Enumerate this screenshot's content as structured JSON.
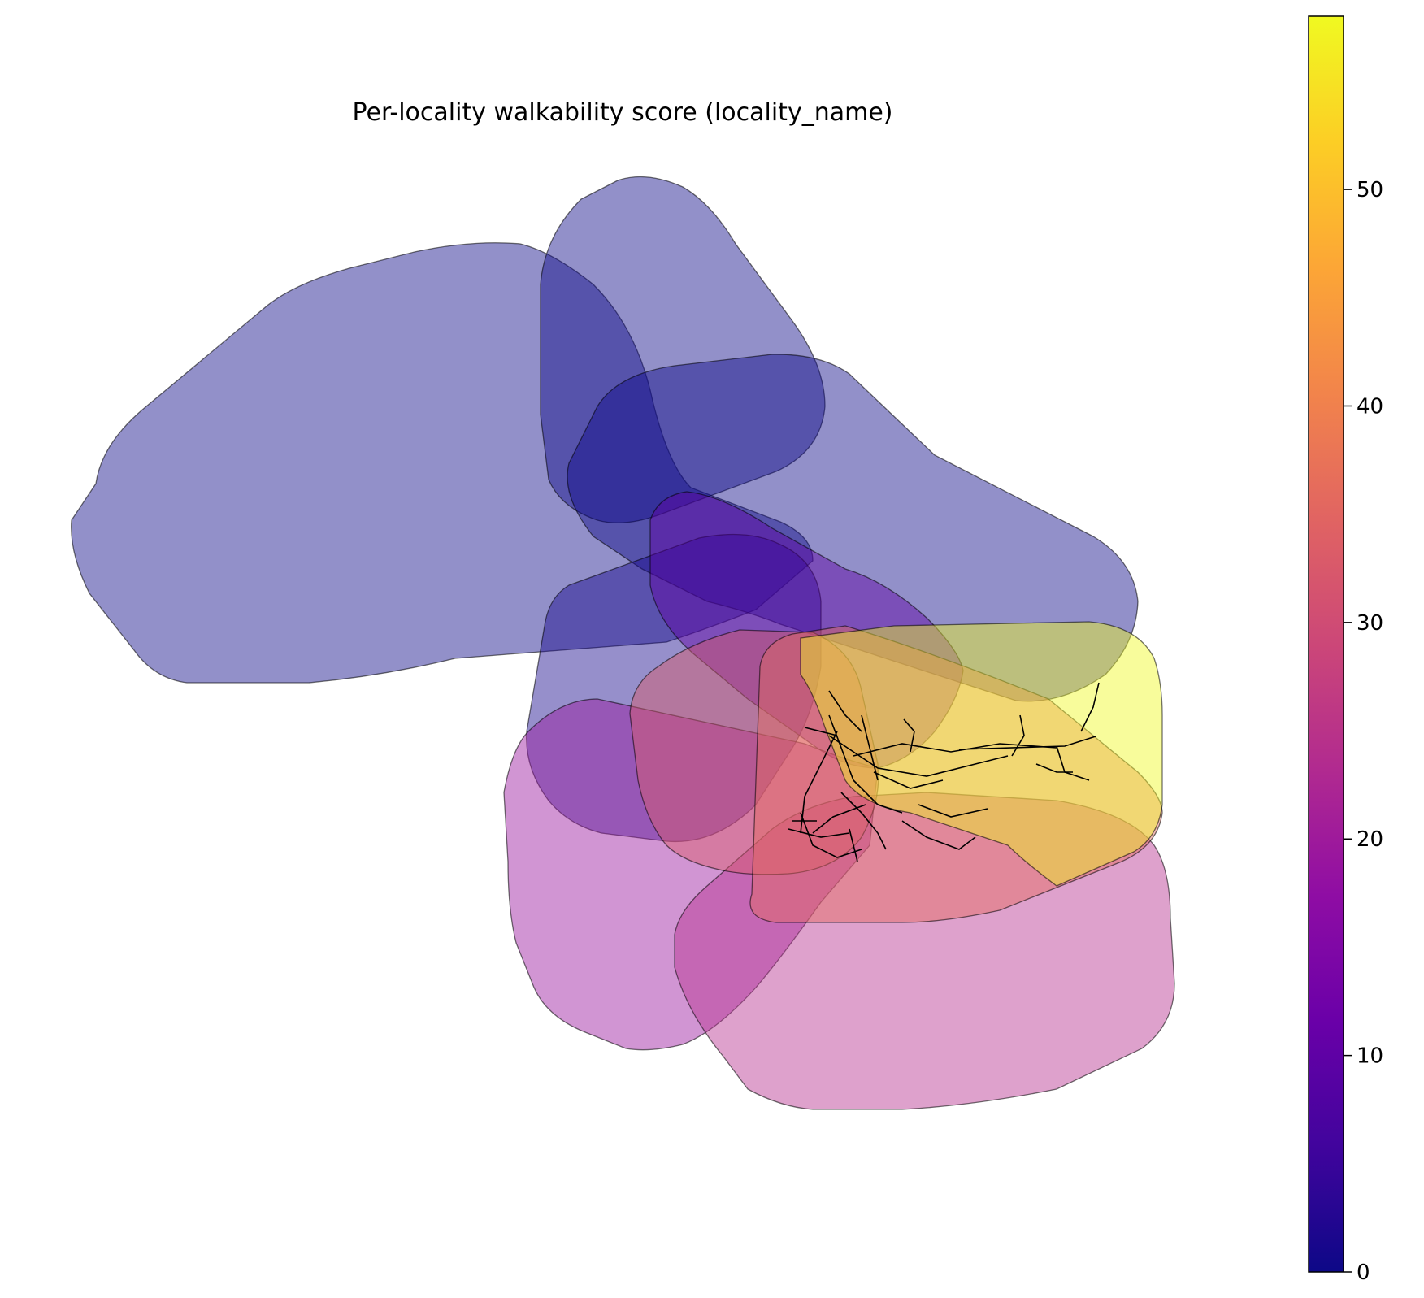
{
  "chart_data": {
    "type": "choropleth",
    "title": "Per-locality walkability score (locality_name)",
    "colormap": "plasma",
    "colorbar": {
      "min": 0,
      "max": 58,
      "ticks": [
        0,
        10,
        20,
        30,
        40,
        50
      ],
      "tick_labels": [
        "0",
        "10",
        "20",
        "30",
        "40",
        "50"
      ],
      "placement": "right"
    },
    "localities": [
      {
        "score": 0
      },
      {
        "score": 0
      },
      {
        "score": 0
      },
      {
        "score": 1
      },
      {
        "score": 10
      },
      {
        "score": 19
      },
      {
        "score": 24
      },
      {
        "score": 33
      },
      {
        "score": 36
      },
      {
        "score": 58
      }
    ]
  }
}
